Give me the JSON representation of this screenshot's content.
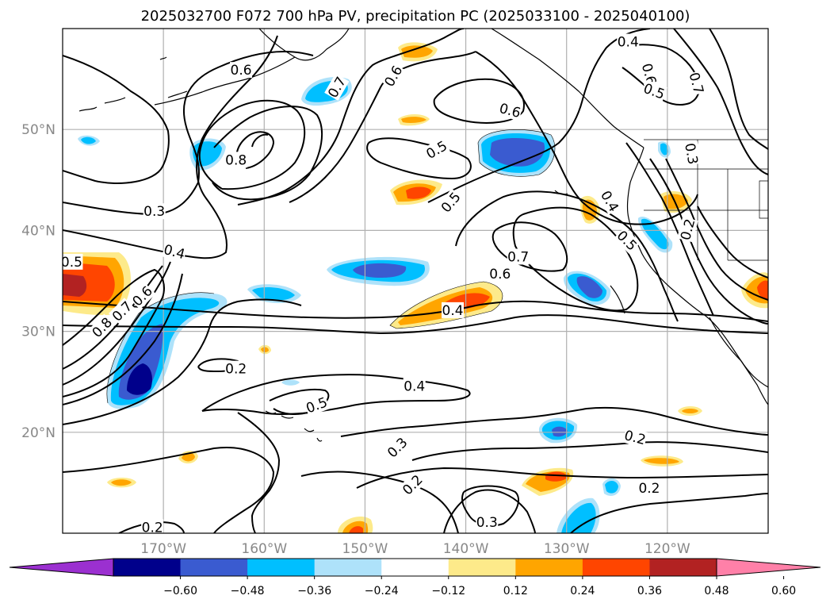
{
  "title": "2025032700 F072 700 hPa PV, precipitation PC (2025033100 - 2025040100)",
  "map": {
    "lon_range": [
      -180,
      -110
    ],
    "lat_range": [
      10,
      60
    ],
    "lon_ticks": [
      {
        "lon": -170,
        "label": "170°W"
      },
      {
        "lon": -160,
        "label": "160°W"
      },
      {
        "lon": -150,
        "label": "150°W"
      },
      {
        "lon": -140,
        "label": "140°W"
      },
      {
        "lon": -130,
        "label": "130°W"
      },
      {
        "lon": -120,
        "label": "120°W"
      }
    ],
    "lat_ticks": [
      {
        "lat": 20,
        "label": "20°N"
      },
      {
        "lat": 30,
        "label": "30°N"
      },
      {
        "lat": 40,
        "label": "40°N"
      },
      {
        "lat": 50,
        "label": "50°N"
      }
    ],
    "grid": true,
    "contour_labels": [
      {
        "text": "0.6",
        "lon": -162.3,
        "lat": 55.9,
        "rot": 0
      },
      {
        "text": "0.7",
        "lon": -152.8,
        "lat": 54.2,
        "rot": -60
      },
      {
        "text": "0.6",
        "lon": -147.2,
        "lat": 55.3,
        "rot": -60
      },
      {
        "text": "0.4",
        "lon": -123.9,
        "lat": 58.7,
        "rot": 0
      },
      {
        "text": "0.6",
        "lon": -121.8,
        "lat": 55.5,
        "rot": 75
      },
      {
        "text": "0.7",
        "lon": -117.1,
        "lat": 54.6,
        "rot": 75
      },
      {
        "text": "0.5",
        "lon": -121.3,
        "lat": 53.8,
        "rot": 20
      },
      {
        "text": "0.6",
        "lon": -135.6,
        "lat": 51.9,
        "rot": 15
      },
      {
        "text": "0.8",
        "lon": -162.8,
        "lat": 47.0,
        "rot": 0
      },
      {
        "text": "0.5",
        "lon": -142.9,
        "lat": 48.0,
        "rot": -30
      },
      {
        "text": "0.5",
        "lon": -141.5,
        "lat": 42.8,
        "rot": -50
      },
      {
        "text": "0.3",
        "lon": -170.9,
        "lat": 41.9,
        "rot": 0
      },
      {
        "text": "0.4",
        "lon": -168.9,
        "lat": 37.9,
        "rot": 15
      },
      {
        "text": "0.4",
        "lon": -125.7,
        "lat": 42.9,
        "rot": 60
      },
      {
        "text": "0.3",
        "lon": -117.6,
        "lat": 47.6,
        "rot": 80
      },
      {
        "text": "0.2",
        "lon": -118.0,
        "lat": 40.1,
        "rot": -75
      },
      {
        "text": "0.5",
        "lon": -124.0,
        "lat": 39.0,
        "rot": 45
      },
      {
        "text": "0.7",
        "lon": -134.8,
        "lat": 37.4,
        "rot": 0
      },
      {
        "text": "0.6",
        "lon": -136.6,
        "lat": 35.7,
        "rot": 0
      },
      {
        "text": "0.5",
        "lon": -179.1,
        "lat": 36.9,
        "rot": 0
      },
      {
        "text": "0.4",
        "lon": -141.3,
        "lat": 32.1,
        "rot": 0
      },
      {
        "text": "0.8",
        "lon": -176.1,
        "lat": 30.4,
        "rot": -45
      },
      {
        "text": "0.7",
        "lon": -174.1,
        "lat": 32.0,
        "rot": -45
      },
      {
        "text": "0.6",
        "lon": -172.1,
        "lat": 33.5,
        "rot": -45
      },
      {
        "text": "0.2",
        "lon": -162.8,
        "lat": 26.3,
        "rot": 0
      },
      {
        "text": "0.4",
        "lon": -145.1,
        "lat": 24.6,
        "rot": 0
      },
      {
        "text": "0.5",
        "lon": -154.8,
        "lat": 22.7,
        "rot": -20
      },
      {
        "text": "0.3",
        "lon": -146.8,
        "lat": 18.5,
        "rot": -45
      },
      {
        "text": "0.2",
        "lon": -145.3,
        "lat": 14.8,
        "rot": -45
      },
      {
        "text": "0.2",
        "lon": -123.2,
        "lat": 19.5,
        "rot": 15
      },
      {
        "text": "0.2",
        "lon": -121.8,
        "lat": 14.5,
        "rot": 0
      },
      {
        "text": "0.3",
        "lon": -137.9,
        "lat": 11.1,
        "rot": 0
      },
      {
        "text": "0.2",
        "lon": -171.1,
        "lat": 10.6,
        "rot": 0
      }
    ]
  },
  "colorbar": {
    "ticks": [
      "−0.60",
      "−0.48",
      "−0.36",
      "−0.24",
      "−0.12",
      "0.12",
      "0.24",
      "0.36",
      "0.48",
      "0.60"
    ],
    "colors": [
      "#9b30d0",
      "#00008b",
      "#3a5bd0",
      "#00bfff",
      "#aee2fa",
      "#ffffff",
      "#fdea8a",
      "#ffa500",
      "#ff4500",
      "#b22222",
      "#ff80a8"
    ]
  }
}
